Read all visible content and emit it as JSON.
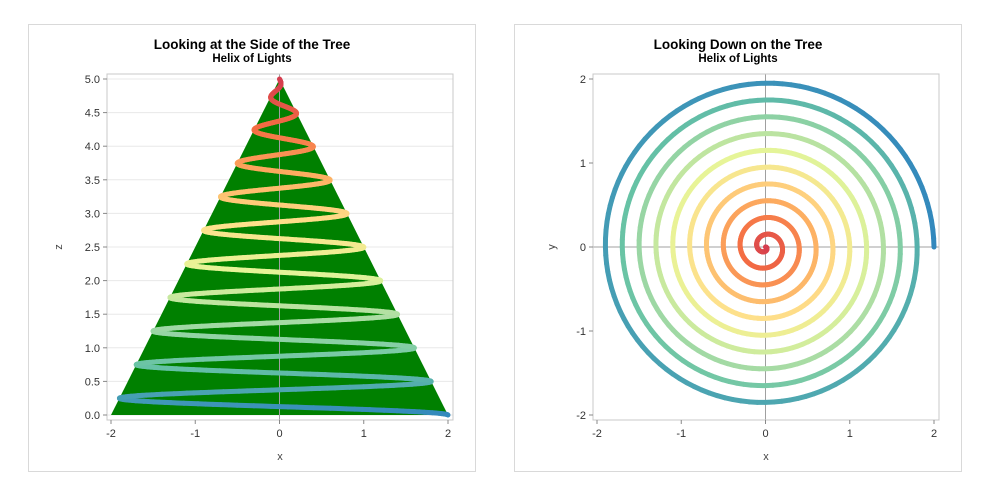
{
  "chart_data": [
    {
      "type": "line",
      "title": "Looking at the Side of the Tree",
      "subtitle": "Helix of Lights",
      "xlabel": "x",
      "ylabel": "z",
      "xlim": [
        -2,
        2
      ],
      "ylim": [
        0,
        5
      ],
      "xticks": [
        "-2",
        "-1",
        "0",
        "1",
        "2"
      ],
      "yticks": [
        "0.0",
        "0.5",
        "1.0",
        "1.5",
        "2.0",
        "2.5",
        "3.0",
        "3.5",
        "4.0",
        "4.5",
        "5.0"
      ],
      "grid": "horizontal",
      "reference_lines": {
        "x": 0
      },
      "tree": {
        "base": [
          [
            -2,
            0
          ],
          [
            2,
            0
          ]
        ],
        "apex": [
          0,
          5
        ],
        "color": "#008000"
      },
      "curve": {
        "x": "2*(1 - z/5)*cos(4*pi*z)",
        "z_range": [
          0,
          5
        ],
        "turns": 10,
        "base_radius": 2,
        "height": 5
      },
      "color_by": "z",
      "palette": [
        "#3288bd",
        "#66c2a5",
        "#abdda4",
        "#e6f598",
        "#fee08b",
        "#fdae61",
        "#f46d43",
        "#d53e4f"
      ]
    },
    {
      "type": "line",
      "title": "Looking Down on the Tree",
      "subtitle": "Helix of Lights",
      "xlabel": "x",
      "ylabel": "y",
      "xlim": [
        -2,
        2
      ],
      "ylim": [
        -2,
        2
      ],
      "xticks": [
        "-2",
        "-1",
        "0",
        "1",
        "2"
      ],
      "yticks": [
        "-2",
        "-1",
        "0",
        "1",
        "2"
      ],
      "grid": "none",
      "reference_lines": {
        "x": 0,
        "y": 0
      },
      "curve": {
        "x": "2*(1 - z/5)*cos(4*pi*z)",
        "y": "2*(1 - z/5)*sin(4*pi*z)",
        "z_range": [
          0,
          5
        ],
        "turns": 10,
        "base_radius": 2,
        "height": 5
      },
      "color_by": "z",
      "palette": [
        "#3288bd",
        "#66c2a5",
        "#abdda4",
        "#e6f598",
        "#fee08b",
        "#fdae61",
        "#f46d43",
        "#d53e4f"
      ]
    }
  ]
}
